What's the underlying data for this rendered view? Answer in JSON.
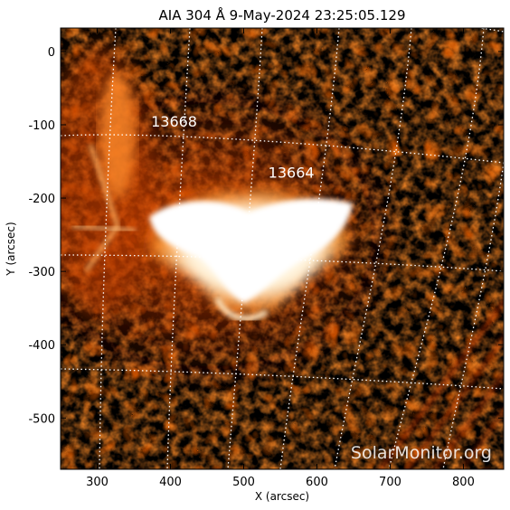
{
  "title": "AIA 304 Å  9-May-2024 23:25:05.129",
  "x_axis": {
    "label": "X (arcsec)",
    "range": [
      250,
      855
    ],
    "ticks": [
      300,
      400,
      500,
      600,
      700,
      800
    ]
  },
  "y_axis": {
    "label": "Y (arcsec)",
    "range": [
      -570,
      32
    ],
    "ticks": [
      0,
      -100,
      -200,
      -300,
      -400,
      -500
    ]
  },
  "active_regions": [
    {
      "number": "13668",
      "x": 405,
      "y": -95
    },
    {
      "number": "13664",
      "x": 565,
      "y": -165
    }
  ],
  "watermark": "SolarMonitor.org",
  "colors": {
    "background": "#000000",
    "mid": "#8b1a00",
    "bright": "#ff7a1a",
    "peak": "#ffffff"
  }
}
